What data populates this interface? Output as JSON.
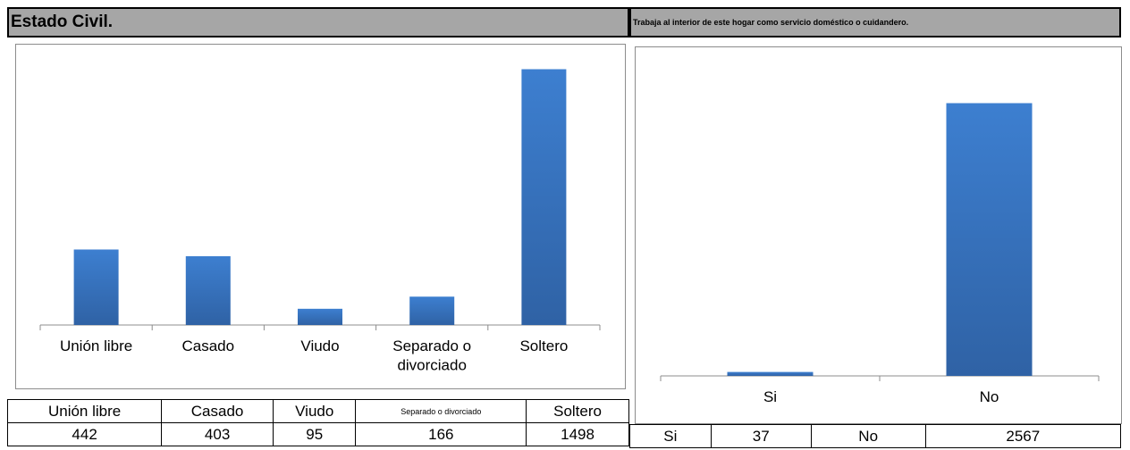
{
  "header": {
    "left_title": "Estado Civil.",
    "right_title": "Trabaja al interior de este hogar como servicio doméstico o cuidandero."
  },
  "chart_data": [
    {
      "type": "bar",
      "categories": [
        "Unión libre",
        "Casado",
        "Viudo",
        "Separado o divorciado",
        "Soltero"
      ],
      "category_lines": [
        [
          "Unión libre"
        ],
        [
          "Casado"
        ],
        [
          "Viudo"
        ],
        [
          "Separado o",
          "divorciado"
        ],
        [
          "Soltero"
        ]
      ],
      "values": [
        442,
        403,
        95,
        166,
        1498
      ],
      "ylim": [
        0,
        1600
      ],
      "grid": false,
      "bar_color": "#3a78c6"
    },
    {
      "type": "bar",
      "categories": [
        "Si",
        "No"
      ],
      "category_lines": [
        [
          "Si"
        ],
        [
          "No"
        ]
      ],
      "values": [
        37,
        2567
      ],
      "ylim": [
        0,
        3000
      ],
      "grid": false,
      "bar_color": "#3a78c6"
    }
  ],
  "table_left": {
    "headers": [
      "Unión libre",
      "Casado",
      "Viudo",
      "Separado o divorciado",
      "Soltero"
    ],
    "values": [
      "442",
      "403",
      "95",
      "166",
      "1498"
    ]
  },
  "table_right": {
    "cells": [
      "Si",
      "37",
      "No",
      "2567"
    ]
  }
}
